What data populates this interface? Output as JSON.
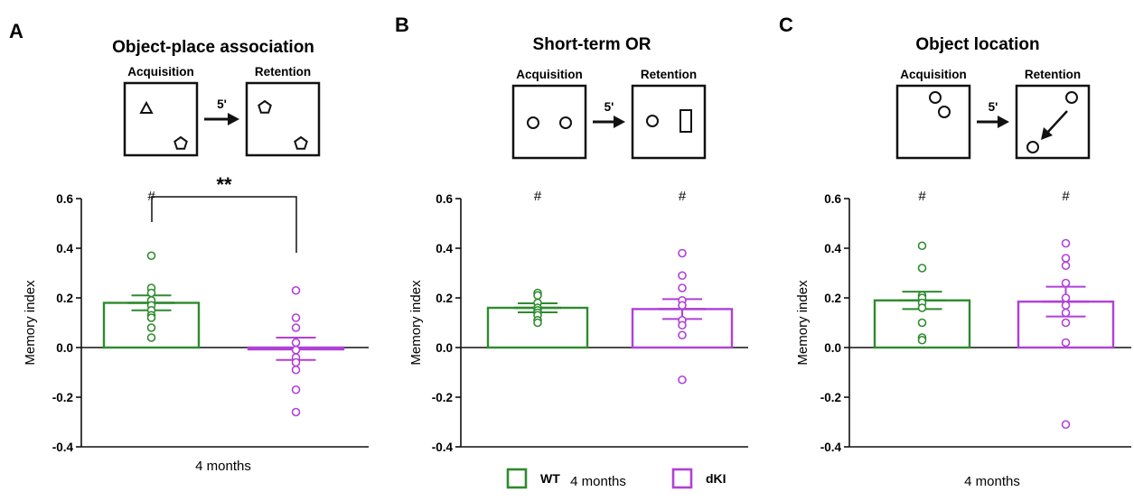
{
  "colors": {
    "WT": "#2e8b2e",
    "dKI": "#b040d8",
    "axis": "#111111"
  },
  "legend": [
    {
      "label": "WT",
      "series": "WT"
    },
    {
      "label": "dKI",
      "series": "dKI"
    }
  ],
  "chart_data": [
    {
      "panel_label": "A",
      "type": "bar",
      "title": "Object-place association",
      "schematic": {
        "left_label": "Acquisition",
        "right_label": "Retention",
        "delay": "5'"
      },
      "xlabel": "4 months",
      "ylabel": "Memory index",
      "ylim": [
        -0.4,
        0.6
      ],
      "yticks": [
        "0.6",
        "0.4",
        "0.2",
        "0.0",
        "-0.2",
        "-0.4"
      ],
      "significance_marker": "#",
      "comparison_marker": "**",
      "series": [
        {
          "name": "WT",
          "mean": 0.18,
          "sem": 0.03,
          "sig": true,
          "points": [
            0.37,
            0.24,
            0.22,
            0.19,
            0.17,
            0.15,
            0.13,
            0.12,
            0.08,
            0.04
          ]
        },
        {
          "name": "dKI",
          "mean": -0.005,
          "sem": 0.045,
          "sig": false,
          "points": [
            0.23,
            0.12,
            0.08,
            0.02,
            -0.01,
            -0.04,
            -0.06,
            -0.09,
            -0.17,
            -0.26
          ]
        }
      ]
    },
    {
      "panel_label": "B",
      "type": "bar",
      "title": "Short-term OR",
      "schematic": {
        "left_label": "Acquisition",
        "right_label": "Retention",
        "delay": "5'"
      },
      "xlabel": "4 months",
      "ylabel": "Memory index",
      "ylim": [
        -0.4,
        0.6
      ],
      "yticks": [
        "0.6",
        "0.4",
        "0.2",
        "0.0",
        "-0.2",
        "-0.4"
      ],
      "significance_marker": "#",
      "series": [
        {
          "name": "WT",
          "mean": 0.16,
          "sem": 0.018,
          "sig": true,
          "points": [
            0.22,
            0.21,
            0.18,
            0.16,
            0.15,
            0.14,
            0.13,
            0.11,
            0.1
          ]
        },
        {
          "name": "dKI",
          "mean": 0.155,
          "sem": 0.04,
          "sig": true,
          "points": [
            0.38,
            0.29,
            0.24,
            0.19,
            0.17,
            0.11,
            0.09,
            0.05,
            -0.13
          ]
        }
      ]
    },
    {
      "panel_label": "C",
      "type": "bar",
      "title": "Object location",
      "schematic": {
        "left_label": "Acquisition",
        "right_label": "Retention",
        "delay": "5'"
      },
      "xlabel": "4 months",
      "ylabel": "Memory index",
      "ylim": [
        -0.4,
        0.6
      ],
      "yticks": [
        "0.6",
        "0.4",
        "0.2",
        "0.0",
        "-0.2",
        "-0.4"
      ],
      "significance_marker": "#",
      "series": [
        {
          "name": "WT",
          "mean": 0.19,
          "sem": 0.035,
          "sig": true,
          "points": [
            0.41,
            0.32,
            0.21,
            0.2,
            0.18,
            0.16,
            0.1,
            0.04,
            0.03
          ]
        },
        {
          "name": "dKI",
          "mean": 0.185,
          "sem": 0.06,
          "sig": true,
          "points": [
            0.42,
            0.36,
            0.33,
            0.26,
            0.2,
            0.17,
            0.14,
            0.1,
            0.02,
            -0.31
          ]
        }
      ]
    }
  ]
}
